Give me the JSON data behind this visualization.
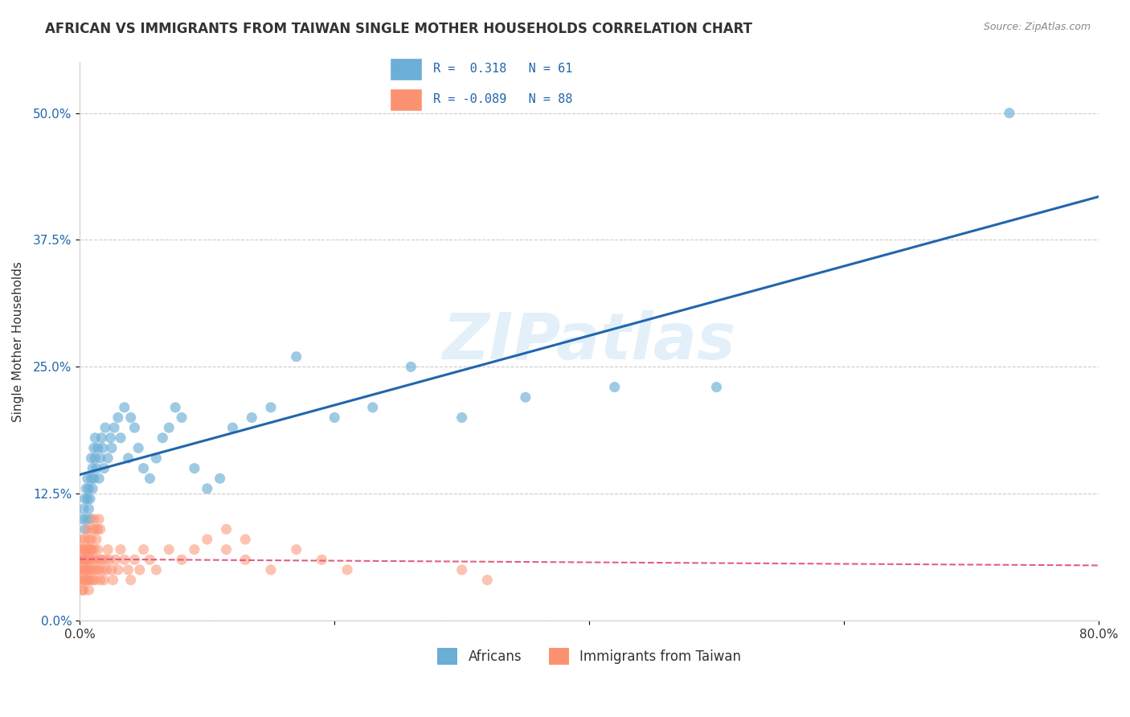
{
  "title": "AFRICAN VS IMMIGRANTS FROM TAIWAN SINGLE MOTHER HOUSEHOLDS CORRELATION CHART",
  "source": "Source: ZipAtlas.com",
  "ylabel": "Single Mother Households",
  "xlim": [
    0.0,
    0.8
  ],
  "ylim": [
    0.0,
    0.55
  ],
  "yticks": [
    0.0,
    0.125,
    0.25,
    0.375,
    0.5
  ],
  "ytick_labels": [
    "0.0%",
    "12.5%",
    "25.0%",
    "37.5%",
    "50.0%"
  ],
  "xticks": [
    0.0,
    0.2,
    0.4,
    0.6,
    0.8
  ],
  "xtick_labels": [
    "0.0%",
    "",
    "",
    "",
    "80.0%"
  ],
  "legend_R1": "R =  0.318",
  "legend_N1": "N = 61",
  "legend_R2": "R = -0.089",
  "legend_N2": "N = 88",
  "blue_color": "#6baed6",
  "pink_color": "#fc9272",
  "blue_line_color": "#2166ac",
  "pink_line_color": "#e06080",
  "watermark": "ZIPatlas",
  "label1": "Africans",
  "label2": "Immigrants from Taiwan",
  "africans_x": [
    0.002,
    0.003,
    0.004,
    0.004,
    0.005,
    0.005,
    0.006,
    0.006,
    0.007,
    0.007,
    0.008,
    0.008,
    0.009,
    0.009,
    0.01,
    0.01,
    0.011,
    0.011,
    0.012,
    0.012,
    0.013,
    0.014,
    0.015,
    0.016,
    0.017,
    0.018,
    0.019,
    0.02,
    0.022,
    0.024,
    0.025,
    0.027,
    0.03,
    0.032,
    0.035,
    0.038,
    0.04,
    0.043,
    0.046,
    0.05,
    0.055,
    0.06,
    0.065,
    0.07,
    0.075,
    0.08,
    0.09,
    0.1,
    0.11,
    0.12,
    0.135,
    0.15,
    0.17,
    0.2,
    0.23,
    0.26,
    0.3,
    0.35,
    0.42,
    0.5,
    0.73
  ],
  "africans_y": [
    0.1,
    0.11,
    0.09,
    0.12,
    0.13,
    0.1,
    0.12,
    0.14,
    0.11,
    0.13,
    0.1,
    0.12,
    0.14,
    0.16,
    0.13,
    0.15,
    0.17,
    0.14,
    0.16,
    0.18,
    0.15,
    0.17,
    0.14,
    0.16,
    0.18,
    0.17,
    0.15,
    0.19,
    0.16,
    0.18,
    0.17,
    0.19,
    0.2,
    0.18,
    0.21,
    0.16,
    0.2,
    0.19,
    0.17,
    0.15,
    0.14,
    0.16,
    0.18,
    0.19,
    0.21,
    0.2,
    0.15,
    0.13,
    0.14,
    0.19,
    0.2,
    0.21,
    0.26,
    0.2,
    0.21,
    0.25,
    0.2,
    0.22,
    0.23,
    0.23,
    0.5
  ],
  "taiwan_x": [
    0.0,
    0.001,
    0.001,
    0.002,
    0.002,
    0.002,
    0.003,
    0.003,
    0.003,
    0.003,
    0.004,
    0.004,
    0.004,
    0.005,
    0.005,
    0.005,
    0.006,
    0.006,
    0.006,
    0.007,
    0.007,
    0.007,
    0.008,
    0.008,
    0.008,
    0.009,
    0.009,
    0.01,
    0.01,
    0.011,
    0.011,
    0.012,
    0.012,
    0.013,
    0.014,
    0.015,
    0.015,
    0.016,
    0.017,
    0.018,
    0.019,
    0.02,
    0.021,
    0.022,
    0.023,
    0.025,
    0.026,
    0.028,
    0.03,
    0.032,
    0.035,
    0.038,
    0.04,
    0.043,
    0.047,
    0.05,
    0.055,
    0.06,
    0.07,
    0.08,
    0.09,
    0.1,
    0.115,
    0.13,
    0.15,
    0.17,
    0.19,
    0.21,
    0.115,
    0.13,
    0.001,
    0.002,
    0.003,
    0.004,
    0.005,
    0.006,
    0.007,
    0.008,
    0.009,
    0.01,
    0.011,
    0.012,
    0.013,
    0.014,
    0.015,
    0.016,
    0.3,
    0.32
  ],
  "taiwan_y": [
    0.05,
    0.04,
    0.06,
    0.03,
    0.05,
    0.07,
    0.04,
    0.06,
    0.03,
    0.05,
    0.04,
    0.06,
    0.07,
    0.05,
    0.04,
    0.06,
    0.05,
    0.07,
    0.04,
    0.06,
    0.05,
    0.03,
    0.07,
    0.06,
    0.04,
    0.05,
    0.07,
    0.06,
    0.04,
    0.05,
    0.07,
    0.06,
    0.04,
    0.05,
    0.07,
    0.06,
    0.05,
    0.04,
    0.06,
    0.05,
    0.04,
    0.06,
    0.05,
    0.07,
    0.06,
    0.05,
    0.04,
    0.06,
    0.05,
    0.07,
    0.06,
    0.05,
    0.04,
    0.06,
    0.05,
    0.07,
    0.06,
    0.05,
    0.07,
    0.06,
    0.07,
    0.08,
    0.07,
    0.06,
    0.05,
    0.07,
    0.06,
    0.05,
    0.09,
    0.08,
    0.08,
    0.07,
    0.06,
    0.08,
    0.07,
    0.09,
    0.08,
    0.07,
    0.08,
    0.09,
    0.1,
    0.09,
    0.08,
    0.09,
    0.1,
    0.09,
    0.05,
    0.04
  ]
}
